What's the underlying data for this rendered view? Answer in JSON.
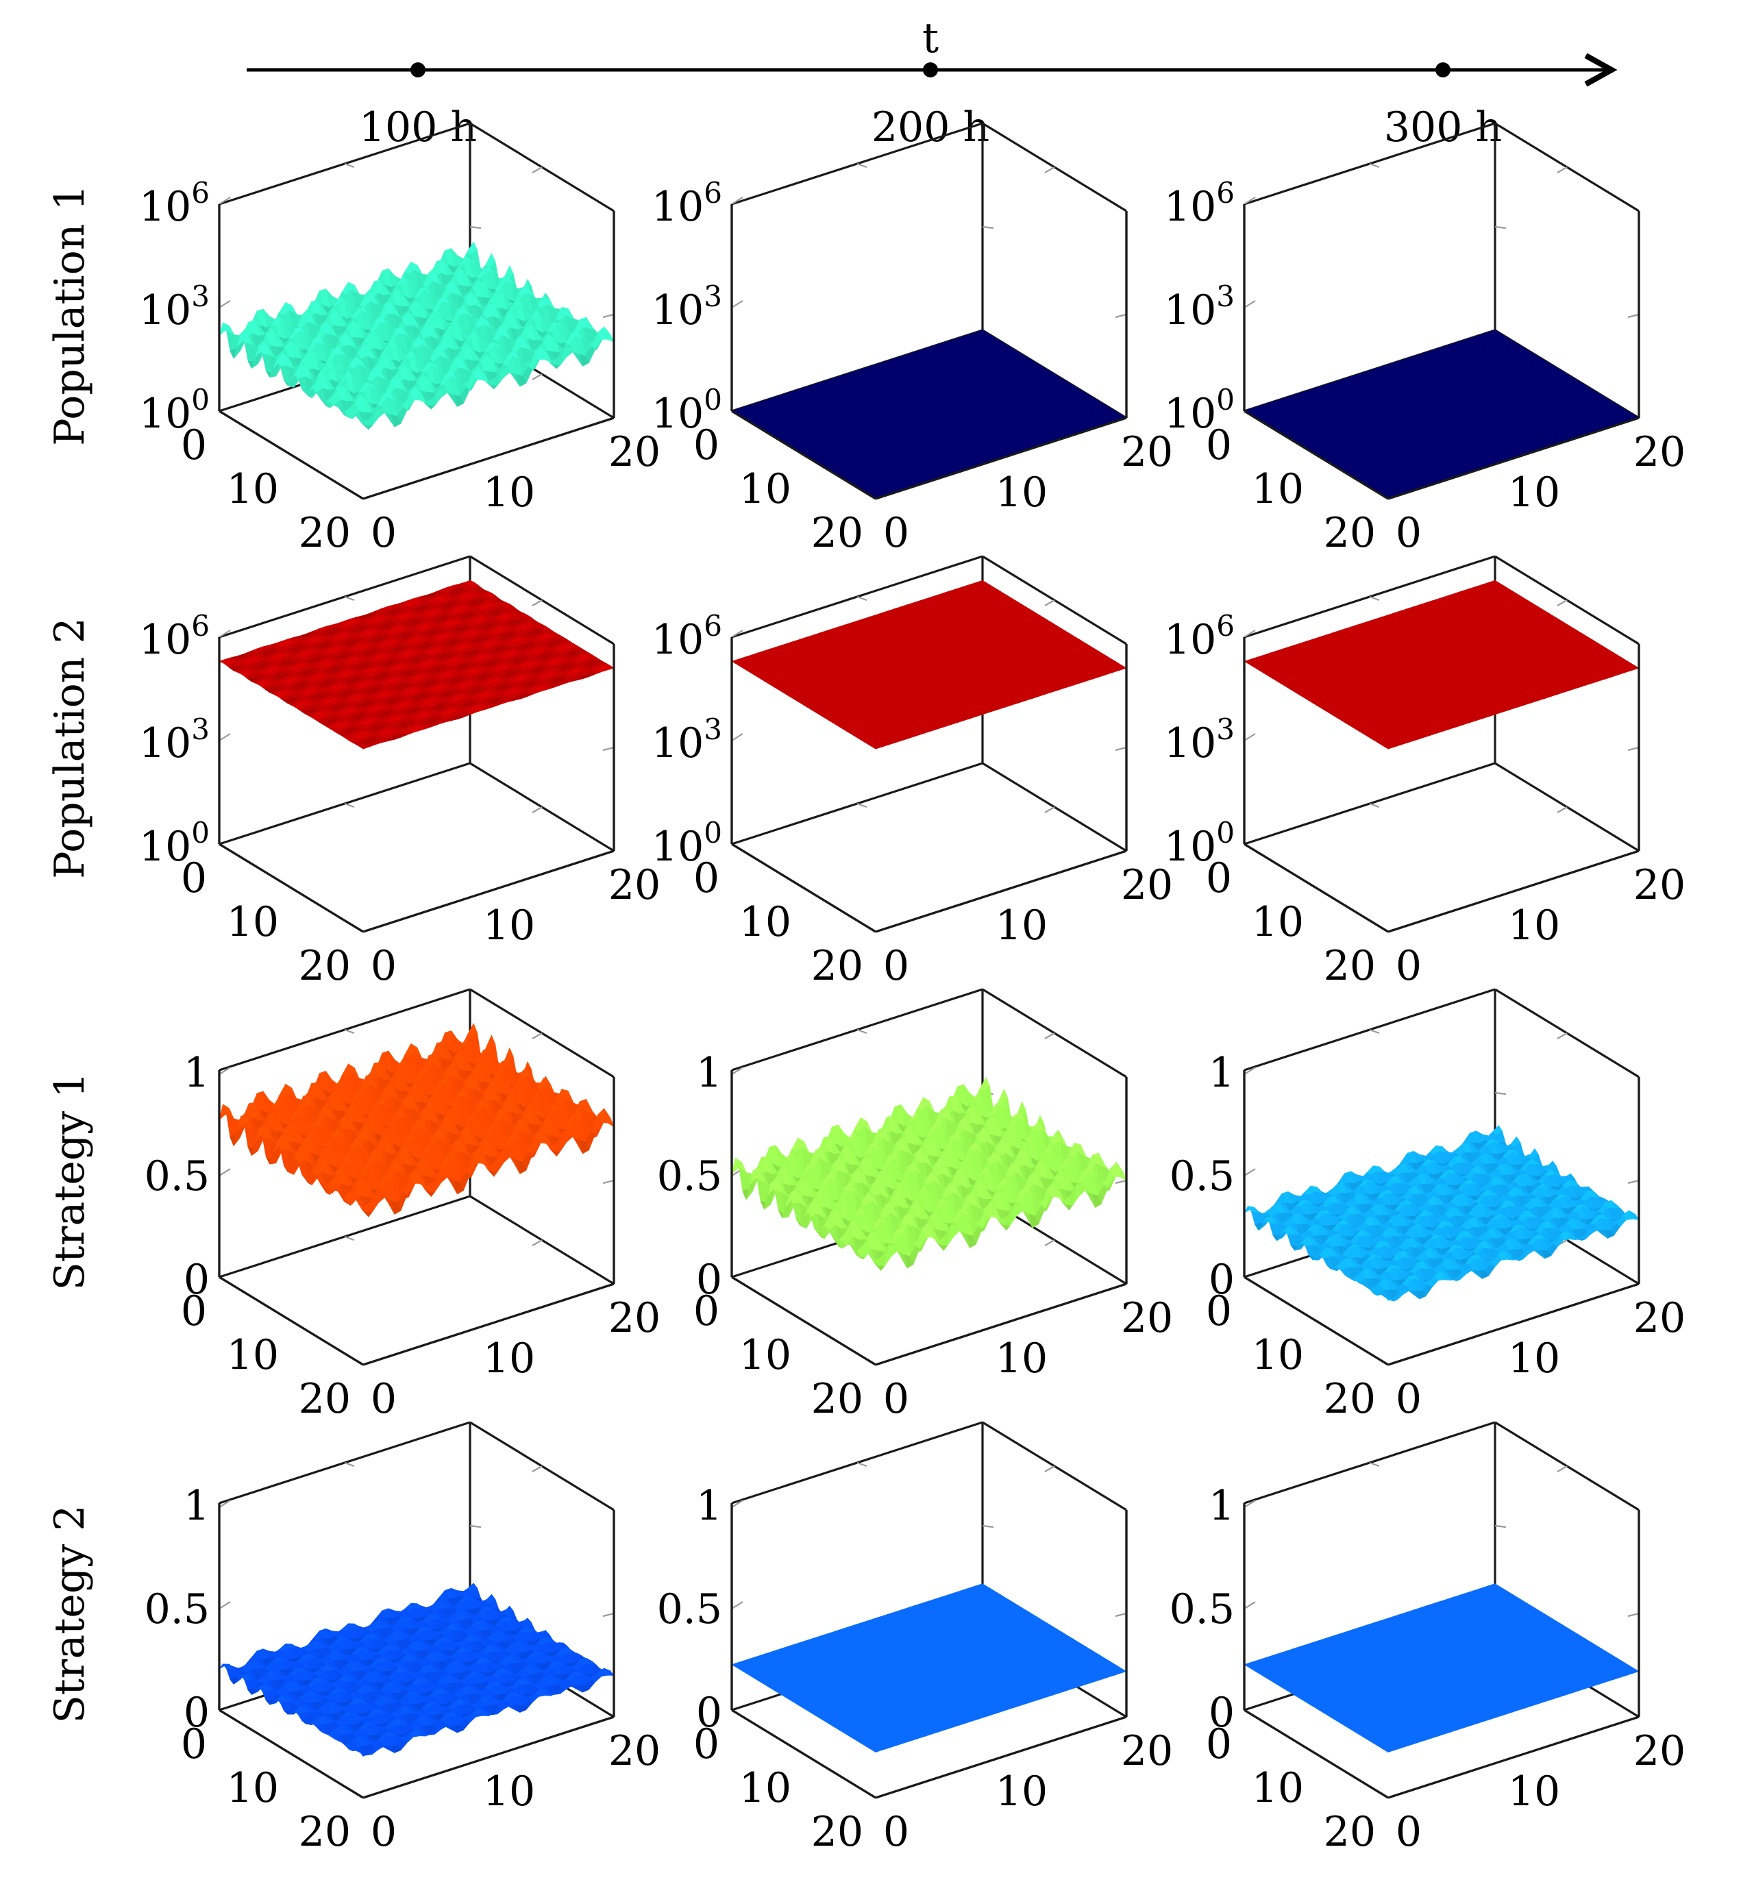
{
  "timeline": {
    "label": "t",
    "ticks": [
      "100 h",
      "200 h",
      "300 h"
    ]
  },
  "rows": [
    {
      "label": "Population 1",
      "z_scale": "log",
      "z_ticks": [
        [
          "10",
          "0"
        ],
        [
          "10",
          "3"
        ],
        [
          "10",
          "6"
        ]
      ]
    },
    {
      "label": "Population 2",
      "z_scale": "log",
      "z_ticks": [
        [
          "10",
          "0"
        ],
        [
          "10",
          "3"
        ],
        [
          "10",
          "6"
        ]
      ]
    },
    {
      "label": "Strategy 1",
      "z_scale": "linear",
      "z_ticks": [
        [
          "0",
          ""
        ],
        [
          "0.5",
          ""
        ],
        [
          "1",
          ""
        ]
      ]
    },
    {
      "label": "Strategy 2",
      "z_scale": "linear",
      "z_ticks": [
        [
          "0",
          ""
        ],
        [
          "0.5",
          ""
        ],
        [
          "1",
          ""
        ]
      ]
    }
  ],
  "xy_ticks": [
    "0",
    "10",
    "20"
  ],
  "chart_data": {
    "type": "surface-grid",
    "title": "",
    "columns": [
      "100 h",
      "200 h",
      "300 h"
    ],
    "x_range": [
      0,
      20
    ],
    "y_range": [
      0,
      20
    ],
    "colormap": "jet",
    "surfaces": [
      {
        "row": "Population 1",
        "column": "100 h",
        "zlim_log10": [
          0,
          6
        ],
        "mean_log10": 2.2,
        "wave_amplitude_log10": 0.45,
        "wave": "oscillating",
        "color_hex": "#36f0c0"
      },
      {
        "row": "Population 1",
        "column": "200 h",
        "zlim_log10": [
          0,
          6
        ],
        "mean_log10": 0,
        "wave_amplitude_log10": 0,
        "wave": "flat",
        "color_hex": "#00006c"
      },
      {
        "row": "Population 1",
        "column": "300 h",
        "zlim_log10": [
          0,
          6
        ],
        "mean_log10": 0,
        "wave_amplitude_log10": 0,
        "wave": "flat",
        "color_hex": "#00006c"
      },
      {
        "row": "Population 2",
        "column": "100 h",
        "zlim_log10": [
          0,
          6
        ],
        "mean_log10": 5.3,
        "wave_amplitude_log10": 0.02,
        "wave": "nearly flat",
        "color_hex": "#c60000"
      },
      {
        "row": "Population 2",
        "column": "200 h",
        "zlim_log10": [
          0,
          6
        ],
        "mean_log10": 5.3,
        "wave_amplitude_log10": 0,
        "wave": "flat",
        "color_hex": "#c60000"
      },
      {
        "row": "Population 2",
        "column": "300 h",
        "zlim_log10": [
          0,
          6
        ],
        "mean_log10": 5.3,
        "wave_amplitude_log10": 0,
        "wave": "flat",
        "color_hex": "#c60000"
      },
      {
        "row": "Strategy 1",
        "column": "100 h",
        "zlim": [
          0,
          1
        ],
        "mean": 0.76,
        "wave_amplitude": 0.09,
        "wave": "oscillating",
        "color_hex": "#ff4a00"
      },
      {
        "row": "Strategy 1",
        "column": "200 h",
        "zlim": [
          0,
          1
        ],
        "mean": 0.5,
        "wave_amplitude": 0.09,
        "wave": "oscillating",
        "color_hex": "#9afa50"
      },
      {
        "row": "Strategy 1",
        "column": "300 h",
        "zlim": [
          0,
          1
        ],
        "mean": 0.31,
        "wave_amplitude": 0.045,
        "wave": "oscillating",
        "color_hex": "#0fb0ff"
      },
      {
        "row": "Strategy 2",
        "column": "100 h",
        "zlim": [
          0,
          1
        ],
        "mean": 0.2,
        "wave_amplitude": 0.035,
        "wave": "oscillating",
        "color_hex": "#0652ff"
      },
      {
        "row": "Strategy 2",
        "column": "200 h",
        "zlim": [
          0,
          1
        ],
        "mean": 0.22,
        "wave_amplitude": 0,
        "wave": "flat",
        "color_hex": "#0a6cff"
      },
      {
        "row": "Strategy 2",
        "column": "300 h",
        "zlim": [
          0,
          1
        ],
        "mean": 0.22,
        "wave_amplitude": 0,
        "wave": "flat",
        "color_hex": "#0a6cff"
      }
    ]
  }
}
